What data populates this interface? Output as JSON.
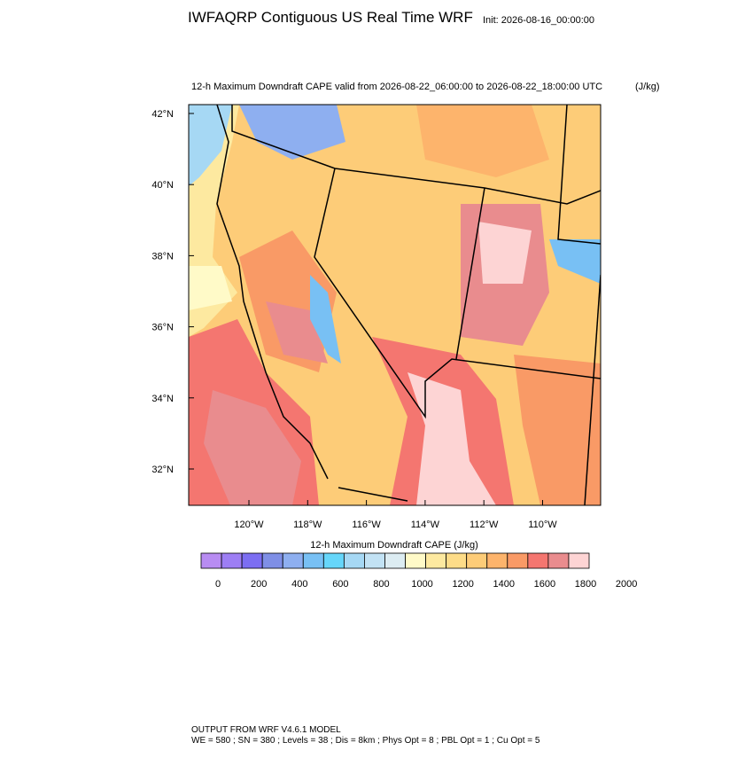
{
  "header": {
    "title": "IWFAQRP Contiguous US Real Time WRF",
    "init": "Init: 2026-08-16_00:00:00"
  },
  "map": {
    "subtitle": "12-h Maximum Downdraft CAPE valid from 2026-08-22_06:00:00 to 2026-08-22_18:00:00 UTC",
    "units": "(J/kg)",
    "lat_labels": [
      "42°N",
      "40°N",
      "38°N",
      "36°N",
      "34°N",
      "32°N"
    ],
    "lon_labels": [
      "120°W",
      "118°W",
      "116°W",
      "114°W",
      "112°W",
      "110°W"
    ]
  },
  "colorbar": {
    "title": "12-h Maximum Downdraft CAPE  (J/kg)",
    "colors": [
      "#b88cf2",
      "#9d7ef4",
      "#7c6ef2",
      "#7f8fe6",
      "#8eaff0",
      "#78c0f4",
      "#66d6fa",
      "#a6d8f4",
      "#c2e2f4",
      "#dcecf2",
      "#fffac8",
      "#fde9a0",
      "#fddc88",
      "#fdcc78",
      "#fdb46c",
      "#f99a66",
      "#f47670",
      "#e98c8e",
      "#fdd4d4"
    ],
    "labels": [
      0,
      200,
      400,
      600,
      800,
      1000,
      1200,
      1400,
      1600,
      1800,
      2000
    ]
  },
  "footer": {
    "line1": "OUTPUT FROM WRF V4.6.1 MODEL",
    "line2": "WE = 580 ; SN = 380 ; Levels = 38 ; Dis = 8km ; Phys Opt = 8 ; PBL Opt = 1 ; Cu Opt = 5"
  }
}
